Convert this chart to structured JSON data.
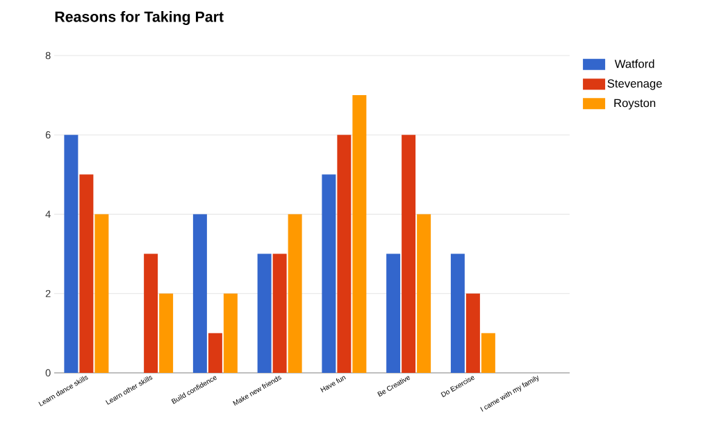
{
  "chart_data": {
    "type": "bar",
    "title": "Reasons for Taking Part",
    "categories": [
      "Learn dance skills",
      "Learn other skills",
      "Build confidence",
      "Make new friends",
      "Have fun",
      "Be Creative",
      "Do Exercise",
      "I came with my family"
    ],
    "series": [
      {
        "name": "Watford",
        "color": "#3366cc",
        "values": [
          6,
          0,
          4,
          3,
          5,
          3,
          3,
          0
        ]
      },
      {
        "name": "Stevenage",
        "color": "#dc3912",
        "values": [
          5,
          3,
          1,
          3,
          6,
          6,
          2,
          0
        ]
      },
      {
        "name": "Royston",
        "color": "#ff9900",
        "values": [
          4,
          2,
          2,
          4,
          7,
          4,
          1,
          0
        ]
      }
    ],
    "ylim": [
      0,
      8
    ],
    "yticks": [
      0,
      2,
      4,
      6,
      8
    ],
    "grid": "y",
    "legend": "top right"
  }
}
